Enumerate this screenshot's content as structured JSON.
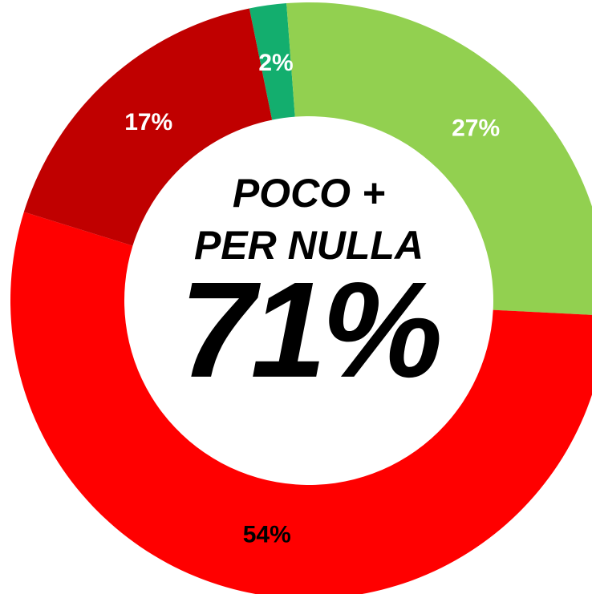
{
  "chart_data": {
    "type": "donut",
    "values": [
      2,
      27,
      54,
      17
    ],
    "value_labels": [
      "2%",
      "27%",
      "54%",
      "17%"
    ],
    "colors": [
      "#13ae6e",
      "#92d050",
      "#ff0000",
      "#c00000"
    ],
    "label_colors": [
      "#ffffff",
      "#ffffff",
      "#000000",
      "#ffffff"
    ],
    "center_lines": [
      "POCO +",
      "PER NULLA"
    ],
    "center_value": "71%"
  }
}
